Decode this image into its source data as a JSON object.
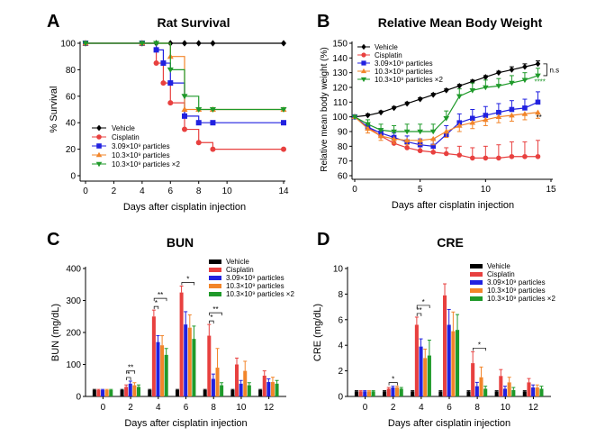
{
  "series_colors": {
    "vehicle": "#000000",
    "cisplatin": "#e8403f",
    "p309": "#2121e0",
    "p103": "#f2852a",
    "p103x2": "#1f9a2a"
  },
  "chart_data": [
    {
      "panel": "A",
      "type": "line",
      "title": "Rat Survival",
      "xlabel": "Days after cisplatin injection",
      "ylabel": "% Survival",
      "xlim": [
        0,
        14
      ],
      "ylim": [
        0,
        100
      ],
      "xticks": [
        0,
        2,
        4,
        6,
        8,
        10,
        14
      ],
      "xtick_labels": [
        "0",
        "2",
        "4",
        "6",
        "8",
        "10",
        "14"
      ],
      "yticks": [
        0,
        20,
        40,
        60,
        80,
        100
      ],
      "step": true,
      "legend": [
        {
          "key": "vehicle",
          "label": "Vehicle",
          "marker": "diamond"
        },
        {
          "key": "cisplatin",
          "label": "Cisplatin",
          "marker": "circle"
        },
        {
          "key": "p309",
          "label": "3.09×10⁹ particles",
          "marker": "square"
        },
        {
          "key": "p103",
          "label": "10.3×10⁹ particles",
          "marker": "triangle"
        },
        {
          "key": "p103x2",
          "label": "10.3×10⁹ particles ×2",
          "marker": "triangle-down"
        }
      ],
      "series": [
        {
          "key": "vehicle",
          "points": [
            [
              0,
              100
            ],
            [
              4,
              100
            ],
            [
              5,
              100
            ],
            [
              6,
              100
            ],
            [
              7,
              100
            ],
            [
              8,
              100
            ],
            [
              9,
              100
            ],
            [
              14,
              100
            ]
          ],
          "line_to": [
            [
              14,
              100
            ]
          ]
        },
        {
          "key": "cisplatin",
          "points": [
            [
              0,
              100
            ],
            [
              4,
              100
            ],
            [
              5,
              85
            ],
            [
              5.5,
              70
            ],
            [
              6,
              55
            ],
            [
              7,
              35
            ],
            [
              8,
              25
            ],
            [
              9,
              20
            ],
            [
              14,
              20
            ]
          ],
          "line_to": [
            [
              14,
              20
            ]
          ]
        },
        {
          "key": "p309",
          "points": [
            [
              0,
              100
            ],
            [
              4,
              100
            ],
            [
              5,
              95
            ],
            [
              5.5,
              85
            ],
            [
              6,
              70
            ],
            [
              7,
              45
            ],
            [
              8,
              40
            ],
            [
              9,
              40
            ],
            [
              14,
              40
            ]
          ],
          "line_to": [
            [
              14,
              40
            ]
          ]
        },
        {
          "key": "p103",
          "points": [
            [
              0,
              100
            ],
            [
              4,
              100
            ],
            [
              6,
              90
            ],
            [
              7,
              50
            ],
            [
              8,
              50
            ],
            [
              9,
              50
            ],
            [
              14,
              50
            ]
          ],
          "line_to": [
            [
              14,
              50
            ]
          ]
        },
        {
          "key": "p103x2",
          "points": [
            [
              0,
              100
            ],
            [
              4,
              100
            ],
            [
              5,
              100
            ],
            [
              6,
              80
            ],
            [
              7,
              60
            ],
            [
              8,
              50
            ],
            [
              9,
              50
            ],
            [
              14,
              50
            ]
          ],
          "line_to": [
            [
              14,
              50
            ]
          ]
        }
      ]
    },
    {
      "panel": "B",
      "type": "line",
      "title": "Relative Mean Body Weight",
      "xlabel": "Days after cisplatin injection",
      "ylabel": "Relative mean body weight (%)",
      "xlim": [
        0,
        15
      ],
      "ylim": [
        60,
        150
      ],
      "xticks": [
        0,
        5,
        10,
        15
      ],
      "yticks": [
        60,
        70,
        80,
        90,
        100,
        110,
        120,
        130,
        140,
        150
      ],
      "annotations": {
        "ns": "n.s",
        "p_four": "****",
        "p_two": "**"
      },
      "legend": [
        {
          "key": "vehicle",
          "label": "Vehicle",
          "marker": "diamond"
        },
        {
          "key": "cisplatin",
          "label": "Cisplatin",
          "marker": "circle"
        },
        {
          "key": "p309",
          "label": "3.09×10⁹ particles",
          "marker": "square"
        },
        {
          "key": "p103",
          "label": "10.3×10⁹ particles",
          "marker": "triangle"
        },
        {
          "key": "p103x2",
          "label": "10.3×10⁹ particles ×2",
          "marker": "triangle-down"
        }
      ],
      "x": [
        0,
        1,
        2,
        3,
        4,
        5,
        6,
        7,
        8,
        9,
        10,
        11,
        12,
        13,
        14
      ],
      "series": [
        {
          "key": "vehicle",
          "values": [
            100,
            101,
            103,
            106,
            109,
            112,
            115,
            118,
            121,
            124,
            127,
            130,
            132,
            134,
            136
          ],
          "err": [
            0,
            1,
            1,
            1,
            1,
            1,
            1,
            1,
            1,
            1,
            1,
            1,
            2,
            2,
            2
          ]
        },
        {
          "key": "cisplatin",
          "values": [
            100,
            93,
            87,
            82,
            79,
            77,
            76,
            75,
            74,
            72,
            72,
            72,
            73,
            73,
            73
          ],
          "err": [
            0,
            2,
            3,
            3,
            3,
            3,
            3,
            4,
            6,
            7,
            8,
            9,
            10,
            10,
            11
          ]
        },
        {
          "key": "p309",
          "values": [
            100,
            93,
            89,
            86,
            83,
            81,
            80,
            88,
            96,
            99,
            101,
            103,
            105,
            106,
            110
          ],
          "err": [
            0,
            2,
            3,
            3,
            4,
            4,
            5,
            6,
            6,
            6,
            6,
            6,
            6,
            6,
            7
          ]
        },
        {
          "key": "p103",
          "values": [
            100,
            92,
            87,
            85,
            84,
            84,
            85,
            90,
            94,
            96,
            98,
            100,
            101,
            102,
            103
          ],
          "err": [
            0,
            3,
            3,
            3,
            3,
            3,
            4,
            4,
            4,
            4,
            4,
            4,
            4,
            4,
            4
          ]
        },
        {
          "key": "p103x2",
          "values": [
            100,
            95,
            91,
            90,
            90,
            90,
            90,
            99,
            114,
            118,
            120,
            121,
            123,
            125,
            128
          ],
          "err": [
            0,
            3,
            4,
            4,
            5,
            5,
            5,
            5,
            5,
            5,
            5,
            5,
            5,
            5,
            5
          ]
        }
      ]
    },
    {
      "panel": "C",
      "type": "bar",
      "title": "BUN",
      "xlabel": "Days after cisplatin injection",
      "ylabel": "BUN (mg/dL)",
      "ylim": [
        0,
        400
      ],
      "yticks": [
        0,
        100,
        200,
        300,
        400
      ],
      "categories": [
        "0",
        "2",
        "4",
        "6",
        "8",
        "10",
        "12"
      ],
      "legend": [
        {
          "key": "vehicle",
          "label": "Vehicle"
        },
        {
          "key": "cisplatin",
          "label": "Cisplatin"
        },
        {
          "key": "p309",
          "label": "3.09×10⁹ particles"
        },
        {
          "key": "p103",
          "label": "10.3×10⁹ particles"
        },
        {
          "key": "p103x2",
          "label": "10.3×10⁹ particles ×2"
        }
      ],
      "series": [
        {
          "key": "vehicle",
          "values": [
            20,
            20,
            20,
            20,
            20,
            20,
            20
          ],
          "err": [
            2,
            2,
            2,
            2,
            2,
            2,
            2
          ]
        },
        {
          "key": "cisplatin",
          "values": [
            20,
            30,
            250,
            325,
            190,
            100,
            65
          ],
          "err": [
            2,
            6,
            20,
            20,
            35,
            20,
            15
          ]
        },
        {
          "key": "p309",
          "values": [
            20,
            40,
            170,
            225,
            55,
            40,
            45
          ],
          "err": [
            2,
            8,
            20,
            40,
            15,
            10,
            10
          ]
        },
        {
          "key": "p103",
          "values": [
            20,
            35,
            160,
            215,
            90,
            80,
            45
          ],
          "err": [
            2,
            8,
            30,
            40,
            60,
            30,
            15
          ]
        },
        {
          "key": "p103x2",
          "values": [
            20,
            30,
            130,
            180,
            35,
            35,
            40
          ],
          "err": [
            2,
            6,
            20,
            40,
            8,
            8,
            10
          ]
        }
      ],
      "sig_brackets": [
        {
          "day": 1,
          "pairs": [
            [
              1,
              2
            ],
            [
              1,
              3
            ]
          ],
          "labels": [
            "*",
            "**"
          ]
        },
        {
          "day": 2,
          "pairs": [
            [
              1,
              2
            ],
            [
              1,
              4
            ]
          ],
          "labels": [
            "*",
            "**"
          ]
        },
        {
          "day": 3,
          "pairs": [
            [
              1,
              4
            ]
          ],
          "labels": [
            "*"
          ]
        },
        {
          "day": 4,
          "pairs": [
            [
              1,
              2
            ],
            [
              1,
              4
            ]
          ],
          "labels": [
            "*",
            "**"
          ]
        }
      ]
    },
    {
      "panel": "D",
      "type": "bar",
      "title": "CRE",
      "xlabel": "Days after cisplatin injection",
      "ylabel": "CRE (mg/dL)",
      "ylim": [
        0,
        10
      ],
      "yticks": [
        0,
        2,
        4,
        6,
        8,
        10
      ],
      "categories": [
        "0",
        "2",
        "4",
        "6",
        "8",
        "10",
        "12"
      ],
      "legend": [
        {
          "key": "vehicle",
          "label": "Vehicle"
        },
        {
          "key": "cisplatin",
          "label": "Cisplatin"
        },
        {
          "key": "p309",
          "label": "3.09×10⁹ particles"
        },
        {
          "key": "p103",
          "label": "10.3×10⁹ particles"
        },
        {
          "key": "p103x2",
          "label": "10.3×10⁹ particles ×2"
        }
      ],
      "series": [
        {
          "key": "vehicle",
          "values": [
            0.4,
            0.4,
            0.4,
            0.4,
            0.4,
            0.4,
            0.4
          ],
          "err": [
            0.05,
            0.05,
            0.05,
            0.05,
            0.05,
            0.05,
            0.05
          ]
        },
        {
          "key": "cisplatin",
          "values": [
            0.4,
            0.6,
            5.6,
            7.9,
            2.6,
            1.6,
            1.1
          ],
          "err": [
            0.05,
            0.1,
            0.6,
            0.9,
            0.9,
            0.5,
            0.3
          ]
        },
        {
          "key": "p309",
          "values": [
            0.4,
            0.7,
            3.9,
            5.6,
            0.8,
            0.6,
            0.7
          ],
          "err": [
            0.05,
            0.1,
            0.6,
            1.2,
            0.3,
            0.2,
            0.2
          ]
        },
        {
          "key": "p103",
          "values": [
            0.4,
            0.7,
            3.0,
            5.1,
            1.5,
            1.1,
            0.7
          ],
          "err": [
            0.05,
            0.1,
            0.7,
            1.5,
            0.8,
            0.4,
            0.2
          ]
        },
        {
          "key": "p103x2",
          "values": [
            0.4,
            0.6,
            3.2,
            5.2,
            0.6,
            0.5,
            0.6
          ],
          "err": [
            0.05,
            0.1,
            1.2,
            1.2,
            0.2,
            0.2,
            0.2
          ]
        }
      ],
      "sig_brackets": [
        {
          "day": 1,
          "pairs": [
            [
              1,
              3
            ]
          ],
          "labels": [
            "*"
          ]
        },
        {
          "day": 2,
          "pairs": [
            [
              1,
              2
            ],
            [
              1,
              4
            ]
          ],
          "labels": [
            "**",
            "*"
          ]
        },
        {
          "day": 4,
          "pairs": [
            [
              1,
              4
            ]
          ],
          "labels": [
            "*"
          ]
        }
      ]
    }
  ],
  "panel_labels": [
    "A",
    "B",
    "C",
    "D"
  ]
}
